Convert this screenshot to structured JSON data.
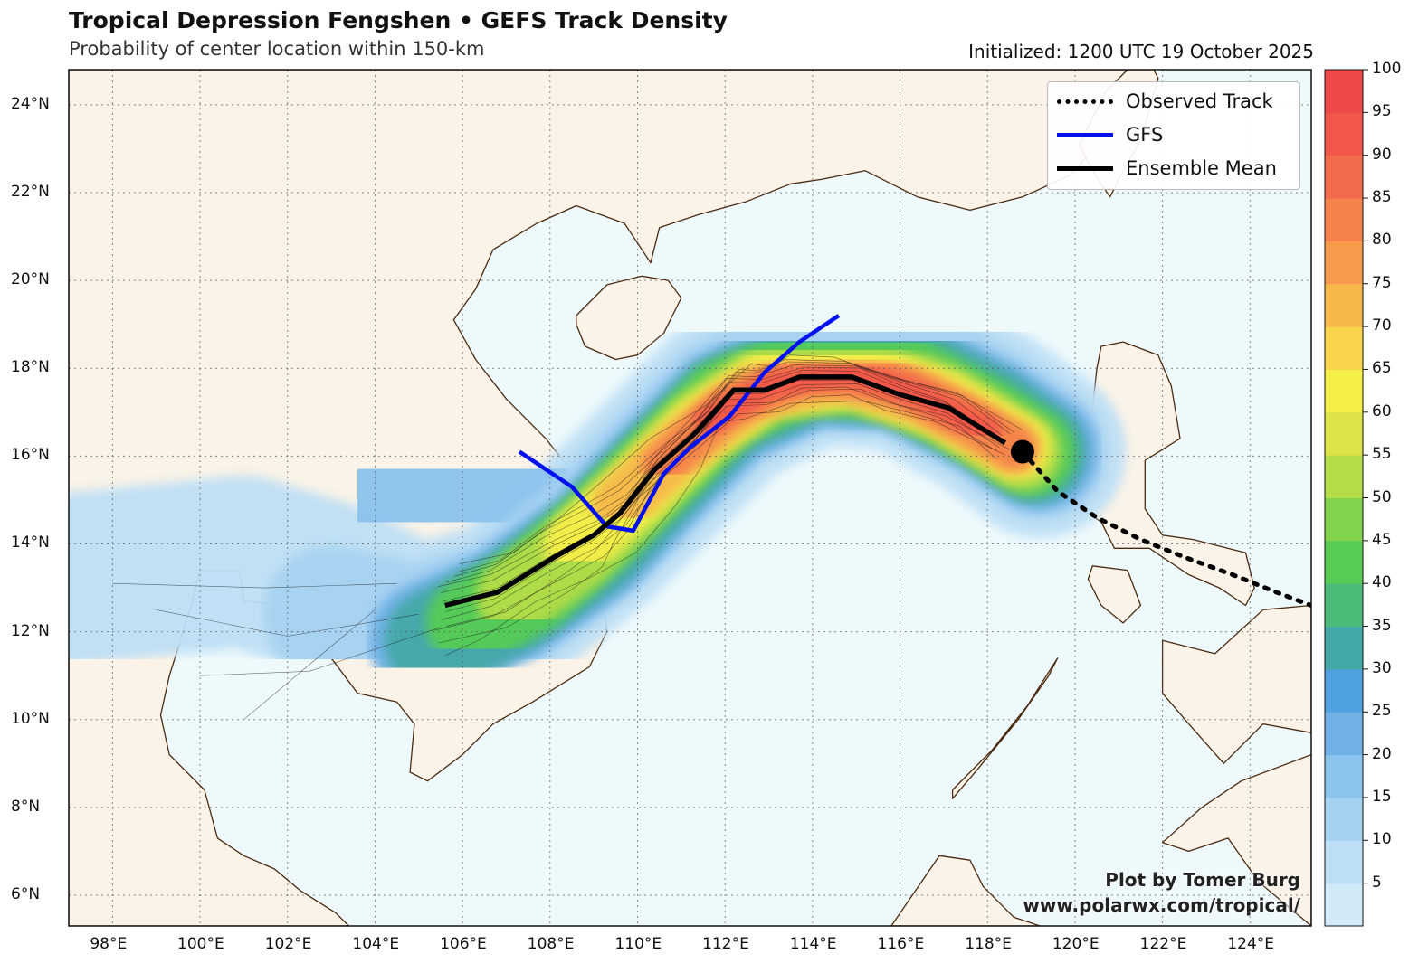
{
  "header": {
    "title": "Tropical Depression Fengshen • GEFS Track Density",
    "subtitle": "Probability of center location within 150-km",
    "initialized": "Initialized: 1200 UTC 19 October 2025"
  },
  "legend": {
    "observed": "Observed Track",
    "gfs": "GFS",
    "mean": "Ensemble Mean"
  },
  "credit": {
    "line1": "Plot by Tomer Burg",
    "line2": "www.polarwx.com/tropical/"
  },
  "map": {
    "lon_range": [
      97.0,
      125.4
    ],
    "lat_range": [
      5.3,
      24.8
    ],
    "lon_ticks": [
      "98°E",
      "100°E",
      "102°E",
      "104°E",
      "106°E",
      "108°E",
      "110°E",
      "112°E",
      "114°E",
      "116°E",
      "118°E",
      "120°E",
      "122°E",
      "124°E"
    ],
    "lat_ticks": [
      "6°N",
      "8°N",
      "10°N",
      "12°N",
      "14°N",
      "16°N",
      "18°N",
      "20°N",
      "22°N",
      "24°N"
    ],
    "ocean_color": "#eef9fc",
    "land_color": "#fbf3e7",
    "coast_color": "#4a2a10"
  },
  "tracks": {
    "current_position": [
      118.8,
      16.1
    ],
    "observed": [
      [
        118.8,
        16.1
      ],
      [
        119.6,
        15.2
      ],
      [
        120.5,
        14.6
      ],
      [
        121.5,
        14.1
      ],
      [
        122.5,
        13.7
      ],
      [
        123.6,
        13.3
      ],
      [
        124.6,
        12.9
      ],
      [
        125.4,
        12.6
      ]
    ],
    "gfs": [
      [
        114.6,
        19.2
      ],
      [
        113.7,
        18.6
      ],
      [
        112.9,
        17.9
      ],
      [
        112.1,
        16.9
      ],
      [
        111.2,
        16.2
      ],
      [
        110.6,
        15.6
      ],
      [
        109.9,
        14.3
      ],
      [
        109.3,
        14.4
      ],
      [
        108.5,
        15.3
      ],
      [
        107.3,
        16.1
      ]
    ],
    "ensemble_mean": [
      [
        118.4,
        16.3
      ],
      [
        117.1,
        17.1
      ],
      [
        116.0,
        17.4
      ],
      [
        114.9,
        17.8
      ],
      [
        113.7,
        17.8
      ],
      [
        112.9,
        17.5
      ],
      [
        112.2,
        17.5
      ],
      [
        111.3,
        16.5
      ],
      [
        110.4,
        15.7
      ],
      [
        109.6,
        14.7
      ],
      [
        109.0,
        14.2
      ],
      [
        108.1,
        13.7
      ],
      [
        106.8,
        12.9
      ],
      [
        105.6,
        12.6
      ]
    ]
  },
  "colorbar": {
    "levels": [
      5,
      10,
      15,
      20,
      25,
      30,
      35,
      40,
      45,
      50,
      55,
      60,
      65,
      70,
      75,
      80,
      85,
      90,
      95,
      100
    ],
    "labels": [
      "5",
      "10",
      "15",
      "20",
      "25",
      "30",
      "35",
      "40",
      "45",
      "50",
      "55",
      "60",
      "65",
      "70",
      "75",
      "80",
      "85",
      "90",
      "95",
      "100"
    ],
    "colors": [
      "#d2e9f8",
      "#bddff5",
      "#a6d2f1",
      "#8cc3ec",
      "#6fb1e6",
      "#4fa0de",
      "#44a8a8",
      "#4cbb7a",
      "#56cc55",
      "#83d24b",
      "#b3dc46",
      "#dbe346",
      "#f6ee48",
      "#f7d44a",
      "#f6b84b",
      "#f79a4b",
      "#f5814b",
      "#f3694b",
      "#f1564a",
      "#ef4848"
    ]
  }
}
